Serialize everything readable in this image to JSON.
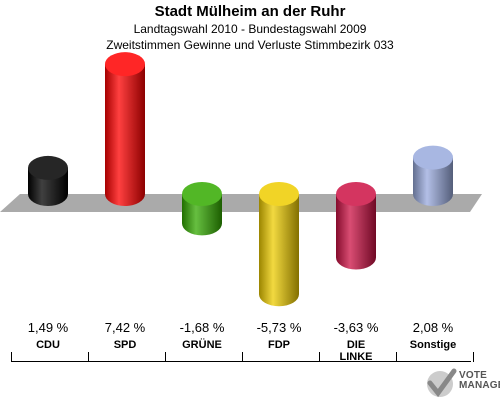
{
  "header": {
    "title": "Stadt Mülheim an der Ruhr",
    "subtitle1": "Landtagswahl 2010 - Bundestagswahl 2009",
    "subtitle2": "Zweitstimmen Gewinne und Verluste Stimmbezirk 033"
  },
  "logo": {
    "line1": "VOTE",
    "line2": "MANAGER"
  },
  "chart_data": {
    "type": "bar",
    "categories": [
      "CDU",
      "SPD",
      "GRÜNE",
      "FDP",
      "DIE LINKE",
      "Sonstige"
    ],
    "category_labels": [
      [
        "CDU"
      ],
      [
        "SPD"
      ],
      [
        "GRÜNE"
      ],
      [
        "FDP"
      ],
      [
        "DIE",
        "LINKE"
      ],
      [
        "Sonstige"
      ]
    ],
    "values": [
      1.49,
      7.42,
      -1.68,
      -5.73,
      -3.63,
      2.08
    ],
    "value_labels": [
      "1,49 %",
      "7,42 %",
      "-1,68 %",
      "-5,73 %",
      "-3,63 %",
      "2,08 %"
    ],
    "colors": [
      "#000000",
      "#ff0000",
      "#33aa00",
      "#eecc00",
      "#cc1144",
      "#99aadd"
    ],
    "grid": false,
    "legend": "none"
  }
}
